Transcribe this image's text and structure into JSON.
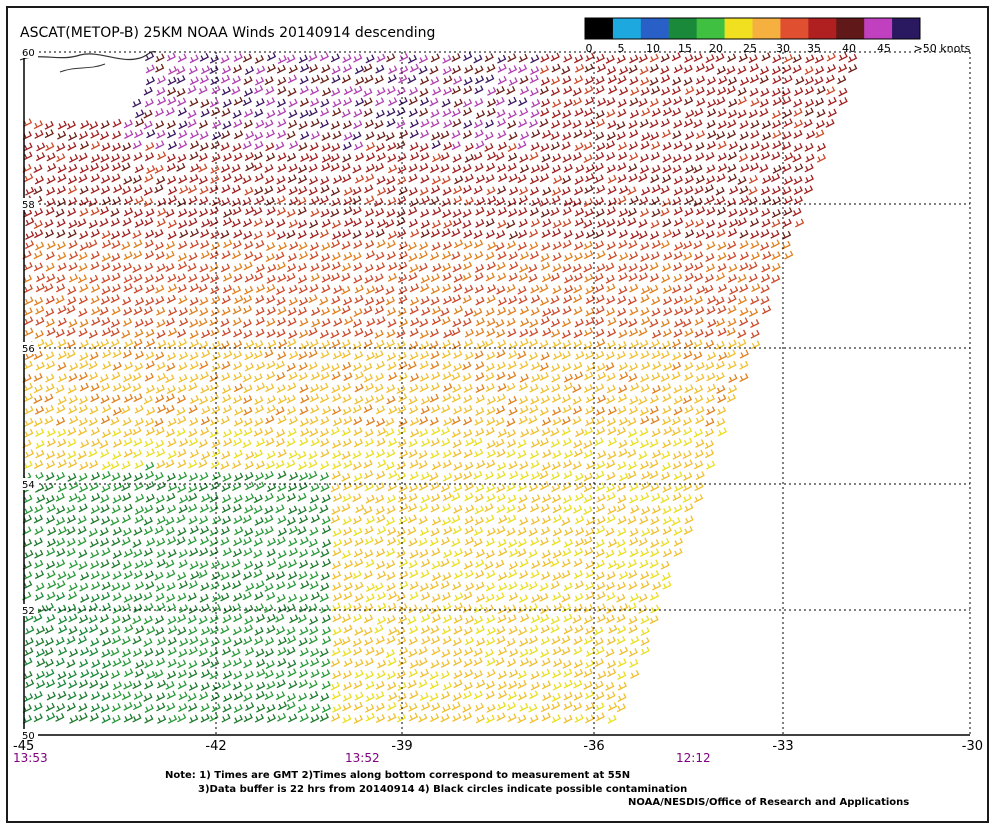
{
  "title": "ASCAT(METOP-B) 25KM NOAA Winds 20140914 descending",
  "colorbar": {
    "labels": [
      "0",
      "5",
      "10",
      "15",
      "20",
      "25",
      "30",
      "35",
      "40",
      "45",
      ">50 knots"
    ],
    "colors": [
      "#000000",
      "#1ea8e0",
      "#2860c8",
      "#1a8a3a",
      "#40c040",
      "#f0e020",
      "#f5b040",
      "#e05030",
      "#b02020",
      "#601818",
      "#c040c0",
      "#2a1860"
    ]
  },
  "axes": {
    "lat_labels": [
      "60",
      "58",
      "56",
      "54",
      "52",
      "50"
    ],
    "lon_labels": [
      "-45",
      "-42",
      "-39",
      "-36",
      "-33",
      "-30"
    ],
    "time_labels": [
      "13:53",
      "13:52",
      "12:12"
    ],
    "time_color": "#800080"
  },
  "notes": {
    "line1": "Note: 1) Times are GMT 2)Times along bottom correspond to measurement at 55N",
    "line2": "3)Data buffer is 22 hrs from 20140914 4) Black circles indicate possible contamination",
    "credit": "NOAA/NESDIS/Office of Research and Applications"
  }
}
